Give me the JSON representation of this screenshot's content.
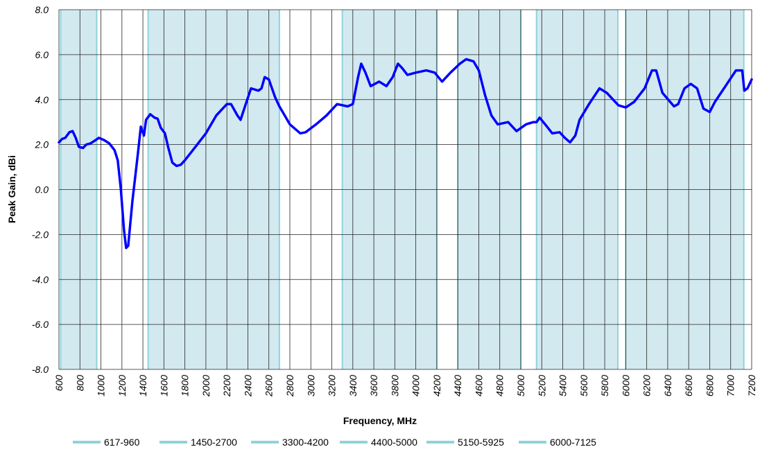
{
  "chart_data": {
    "type": "line",
    "x_label": "Frequency, MHz",
    "y_label": "Peak Gain, dBi",
    "xlim": [
      600,
      7200
    ],
    "xticks": [
      600,
      800,
      1000,
      1200,
      1400,
      1600,
      1800,
      2000,
      2200,
      2400,
      2600,
      2800,
      3000,
      3200,
      3400,
      3600,
      3800,
      4000,
      4200,
      4400,
      4600,
      4800,
      5000,
      5200,
      5400,
      5600,
      5800,
      6000,
      6200,
      6400,
      6600,
      6800,
      7000,
      7200
    ],
    "ylim": [
      -8,
      8
    ],
    "yticks": [
      {
        "value": -8,
        "label": "-8.0"
      },
      {
        "value": -6,
        "label": "-6.0"
      },
      {
        "value": -4,
        "label": "-4.0"
      },
      {
        "value": -2,
        "label": "-2.0"
      },
      {
        "value": 0,
        "label": "0.0"
      },
      {
        "value": 2,
        "label": "2.0"
      },
      {
        "value": 4,
        "label": "4.0"
      },
      {
        "value": 6,
        "label": "6.0"
      },
      {
        "value": 8,
        "label": "8.0"
      }
    ],
    "grid": true,
    "band_color": "#8fd3da",
    "band_fill": "#d3e9f0",
    "bands": [
      {
        "name": "617-960",
        "range": [
          617,
          960
        ]
      },
      {
        "name": "1450-2700",
        "range": [
          1450,
          2700
        ]
      },
      {
        "name": "3300-4200",
        "range": [
          3300,
          4200
        ]
      },
      {
        "name": "4400-5000",
        "range": [
          4400,
          5000
        ]
      },
      {
        "name": "5150-5925",
        "range": [
          5150,
          5925
        ]
      },
      {
        "name": "6000-7125",
        "range": [
          6000,
          7125
        ]
      }
    ],
    "series": [
      {
        "color": "#0000ff",
        "x": [
          600,
          630,
          660,
          700,
          730,
          760,
          790,
          830,
          860,
          900,
          950,
          980,
          1030,
          1080,
          1130,
          1160,
          1190,
          1220,
          1240,
          1260,
          1300,
          1350,
          1380,
          1410,
          1430,
          1470,
          1510,
          1540,
          1570,
          1610,
          1640,
          1680,
          1720,
          1760,
          1800,
          1900,
          2000,
          2100,
          2200,
          2240,
          2300,
          2330,
          2380,
          2430,
          2500,
          2530,
          2560,
          2600,
          2660,
          2700,
          2800,
          2900,
          2950,
          3050,
          3150,
          3250,
          3350,
          3400,
          3450,
          3480,
          3520,
          3570,
          3650,
          3720,
          3780,
          3830,
          3870,
          3920,
          4000,
          4100,
          4180,
          4250,
          4330,
          4420,
          4480,
          4550,
          4600,
          4660,
          4720,
          4780,
          4880,
          4960,
          5050,
          5120,
          5150,
          5180,
          5250,
          5300,
          5370,
          5420,
          5470,
          5520,
          5560,
          5650,
          5750,
          5820,
          5880,
          5930,
          6000,
          6080,
          6180,
          6250,
          6290,
          6350,
          6460,
          6500,
          6560,
          6620,
          6680,
          6740,
          6800,
          6850,
          6950,
          7050,
          7110,
          7130,
          7160,
          7200
        ],
        "values": [
          2.1,
          2.25,
          2.3,
          2.55,
          2.6,
          2.3,
          1.9,
          1.85,
          2.0,
          2.05,
          2.2,
          2.3,
          2.2,
          2.05,
          1.75,
          1.3,
          0.0,
          -1.8,
          -2.6,
          -2.5,
          -0.5,
          1.5,
          2.8,
          2.4,
          3.1,
          3.35,
          3.2,
          3.15,
          2.75,
          2.5,
          1.9,
          1.2,
          1.05,
          1.1,
          1.3,
          1.9,
          2.5,
          3.3,
          3.8,
          3.8,
          3.3,
          3.1,
          3.8,
          4.5,
          4.4,
          4.5,
          5.0,
          4.9,
          4.1,
          3.7,
          2.9,
          2.5,
          2.55,
          2.9,
          3.3,
          3.8,
          3.7,
          3.8,
          5.0,
          5.6,
          5.2,
          4.6,
          4.8,
          4.6,
          5.0,
          5.6,
          5.4,
          5.1,
          5.2,
          5.3,
          5.2,
          4.8,
          5.2,
          5.6,
          5.8,
          5.7,
          5.3,
          4.2,
          3.3,
          2.9,
          3.0,
          2.6,
          2.9,
          3.0,
          3.0,
          3.2,
          2.8,
          2.5,
          2.55,
          2.3,
          2.1,
          2.4,
          3.1,
          3.8,
          4.5,
          4.3,
          4.0,
          3.75,
          3.65,
          3.9,
          4.5,
          5.3,
          5.3,
          4.3,
          3.7,
          3.8,
          4.5,
          4.7,
          4.5,
          3.6,
          3.45,
          3.9,
          4.6,
          5.3,
          5.3,
          4.4,
          4.5,
          4.9
        ]
      }
    ]
  }
}
